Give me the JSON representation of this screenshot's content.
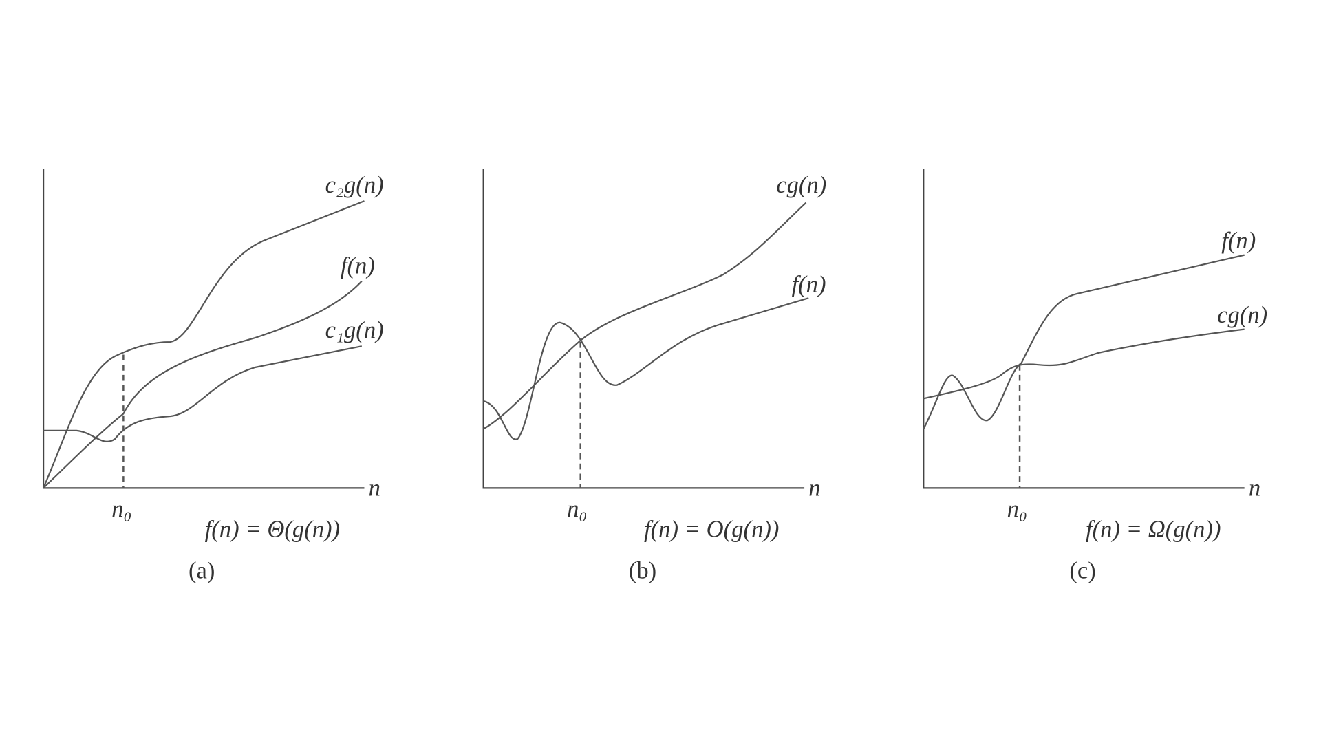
{
  "panels": [
    {
      "curves": [
        {
          "label": "c₂g(n)"
        },
        {
          "label": "f(n)"
        },
        {
          "label": "c₁g(n)"
        }
      ],
      "axis_label": "n",
      "threshold_label": "n₀",
      "formula": "f(n) = Θ(g(n))",
      "caption": "(a)"
    },
    {
      "curves": [
        {
          "label": "cg(n)"
        },
        {
          "label": "f(n)"
        }
      ],
      "axis_label": "n",
      "threshold_label": "n₀",
      "formula": "f(n) = O(g(n))",
      "caption": "(b)"
    },
    {
      "curves": [
        {
          "label": "f(n)"
        },
        {
          "label": "cg(n)"
        }
      ],
      "axis_label": "n",
      "threshold_label": "n₀",
      "formula": "f(n) = Ω(g(n))",
      "caption": "(c)"
    }
  ]
}
